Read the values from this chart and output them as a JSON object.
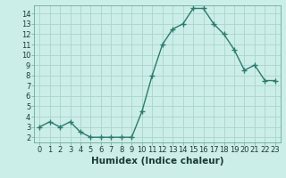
{
  "x": [
    0,
    1,
    2,
    3,
    4,
    5,
    6,
    7,
    8,
    9,
    10,
    11,
    12,
    13,
    14,
    15,
    16,
    17,
    18,
    19,
    20,
    21,
    22,
    23
  ],
  "y": [
    3.0,
    3.5,
    3.0,
    3.5,
    2.5,
    2.0,
    2.0,
    2.0,
    2.0,
    2.0,
    4.5,
    8.0,
    11.0,
    12.5,
    13.0,
    14.5,
    14.5,
    13.0,
    12.0,
    10.5,
    8.5,
    9.0,
    7.5,
    7.5
  ],
  "line_color": "#2d7a6e",
  "marker": "+",
  "marker_size": 4,
  "marker_linewidth": 1.0,
  "bg_color": "#cceee8",
  "grid_color": "#aad4cc",
  "xlabel": "Humidex (Indice chaleur)",
  "xlim": [
    -0.5,
    23.5
  ],
  "ylim": [
    1.5,
    14.8
  ],
  "yticks": [
    2,
    3,
    4,
    5,
    6,
    7,
    8,
    9,
    10,
    11,
    12,
    13,
    14
  ],
  "xticks": [
    0,
    1,
    2,
    3,
    4,
    5,
    6,
    7,
    8,
    9,
    10,
    11,
    12,
    13,
    14,
    15,
    16,
    17,
    18,
    19,
    20,
    21,
    22,
    23
  ],
  "tick_fontsize": 6,
  "label_fontsize": 7.5,
  "line_width": 1.0
}
